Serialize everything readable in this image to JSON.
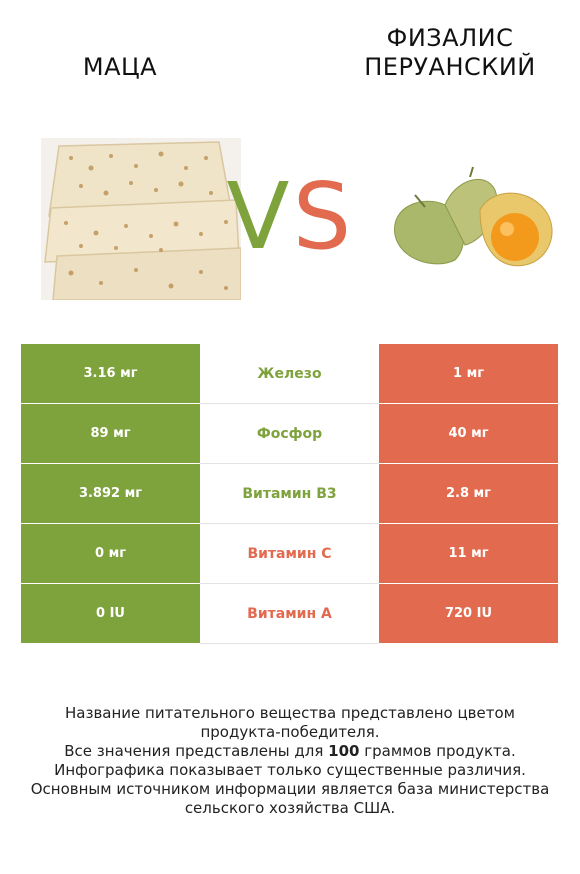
{
  "titles": {
    "left": "Маца",
    "right_line1": "Физалис",
    "right_line2": "перуанский"
  },
  "vs": {
    "v": "V",
    "s": "S",
    "v_color": "#7ea23c",
    "s_color": "#e26a4e"
  },
  "images": {
    "left": "matzo-image",
    "right": "physalis-image"
  },
  "rows": [
    {
      "left": "3.16 мг",
      "nutrient": "Железо",
      "right": "1 мг",
      "winner": "left"
    },
    {
      "left": "89 мг",
      "nutrient": "Фосфор",
      "right": "40 мг",
      "winner": "left"
    },
    {
      "left": "3.892 мг",
      "nutrient": "Витамин B3",
      "right": "2.8 мг",
      "winner": "left"
    },
    {
      "left": "0 мг",
      "nutrient": "Витамин C",
      "right": "11 мг",
      "winner": "right"
    },
    {
      "left": "0 IU",
      "nutrient": "Витамин A",
      "right": "720 IU",
      "winner": "right"
    }
  ],
  "footer": {
    "line1": "Название питательного вещества представлено цветом",
    "line2": "продукта-победителя.",
    "line3_pre": "Все значения представлены для ",
    "line3_bold": "100",
    "line3_post": " граммов продукта.",
    "line4": "Инфографика показывает только существенные различия.",
    "line5": "Основным источником информации является база министерства",
    "line6": "сельского хозяйства США."
  }
}
